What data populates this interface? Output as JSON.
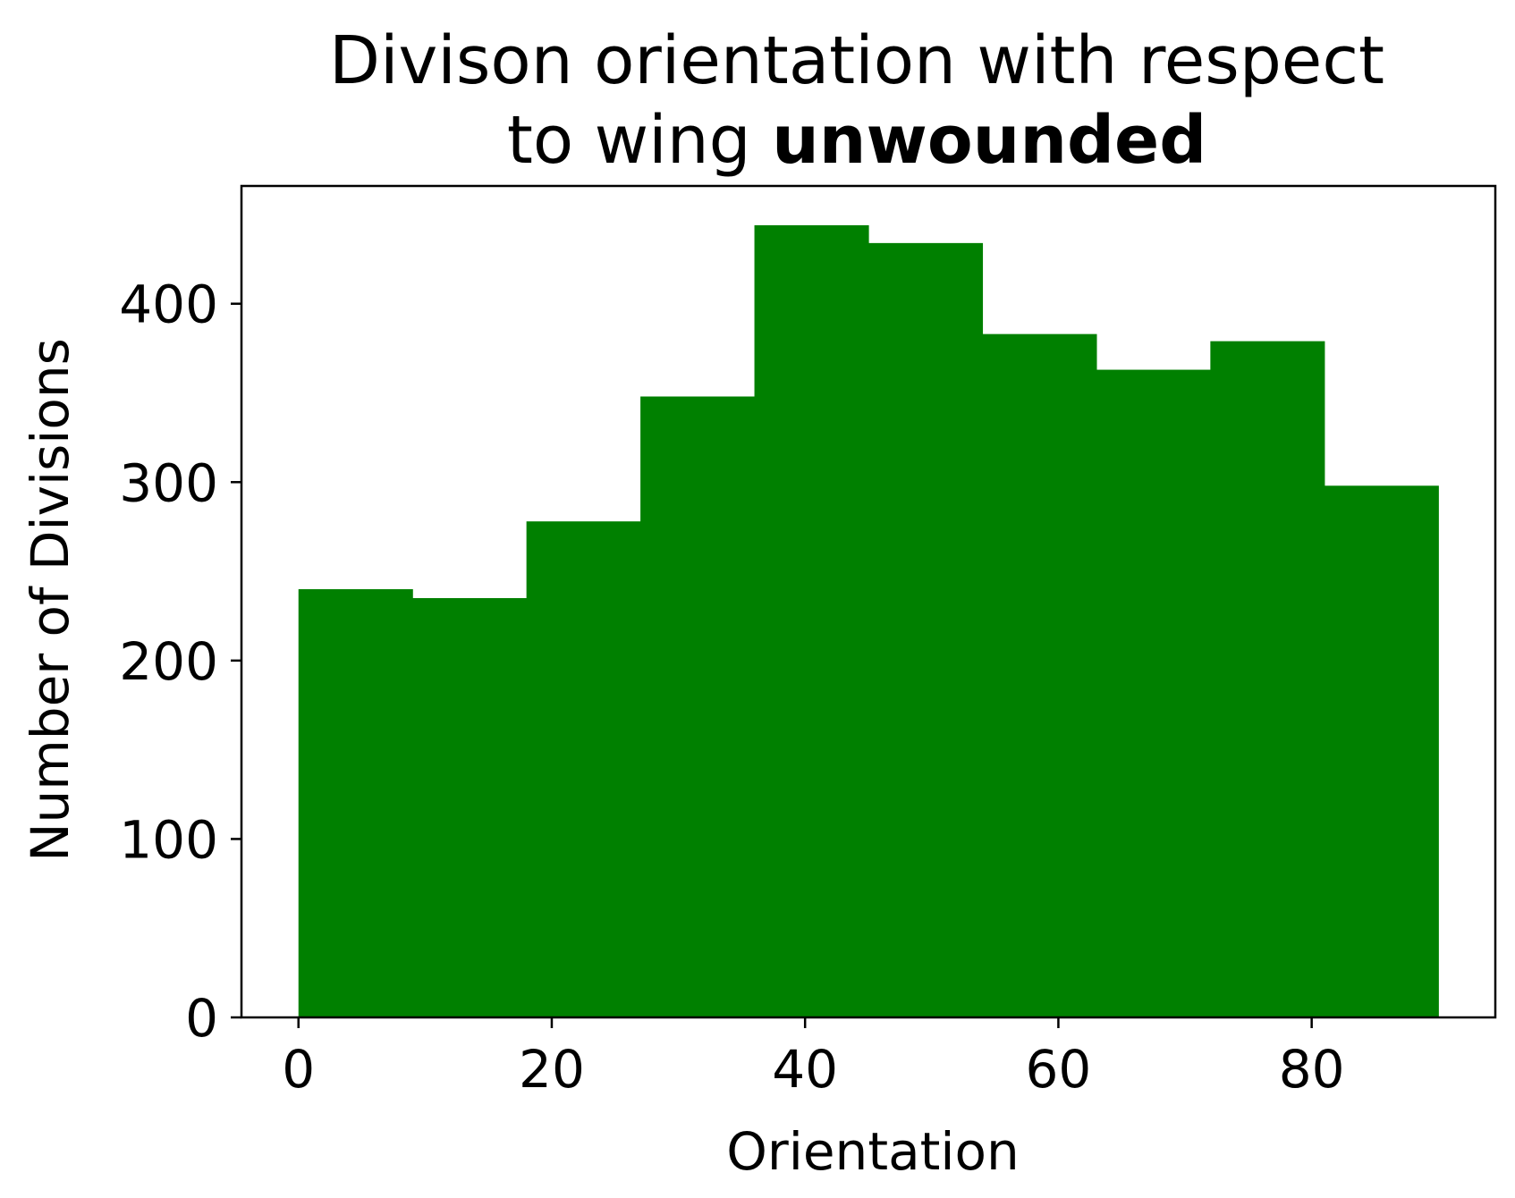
{
  "chart_data": {
    "type": "bar",
    "title_line1": "Divison orientation with respect",
    "title_line2_prefix": "to wing ",
    "title_line2_bold": "unwounded",
    "xlabel": "Orientation",
    "ylabel": "Number of Divisions",
    "bin_edges": [
      0,
      9,
      18,
      27,
      36,
      45,
      54,
      63,
      72,
      81,
      90
    ],
    "values": [
      240,
      235,
      278,
      348,
      444,
      434,
      383,
      363,
      379,
      298
    ],
    "xlim": [
      -4.5,
      94.5
    ],
    "ylim": [
      0,
      466
    ],
    "xticks": [
      0,
      20,
      40,
      60,
      80
    ],
    "yticks": [
      0,
      100,
      200,
      300,
      400
    ],
    "bar_color": "#008000",
    "grid": false,
    "legend": false
  }
}
